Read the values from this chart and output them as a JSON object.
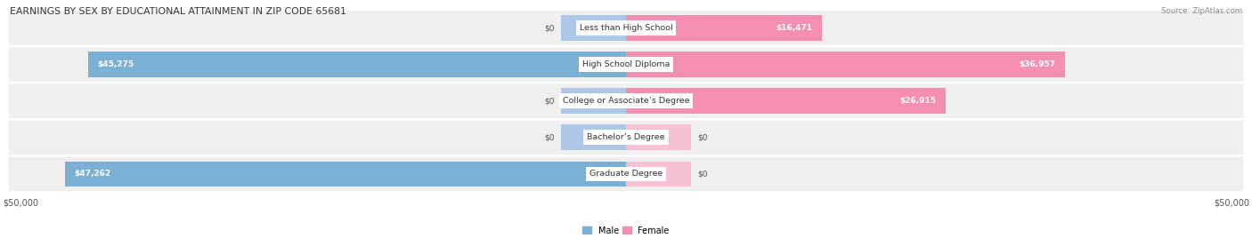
{
  "title": "EARNINGS BY SEX BY EDUCATIONAL ATTAINMENT IN ZIP CODE 65681",
  "source": "Source: ZipAtlas.com",
  "categories": [
    "Less than High School",
    "High School Diploma",
    "College or Associate’s Degree",
    "Bachelor’s Degree",
    "Graduate Degree"
  ],
  "male_values": [
    0,
    45275,
    0,
    0,
    47262
  ],
  "female_values": [
    16471,
    36957,
    26915,
    0,
    0
  ],
  "male_color": "#7bafd4",
  "female_color": "#f48fb1",
  "male_color_light": "#aec6e8",
  "female_color_light": "#f8c0d4",
  "max_value": 50000,
  "stub_value": 5500,
  "xlabel_left": "$50,000",
  "xlabel_right": "$50,000",
  "background_color": "#ffffff",
  "row_bg_color": "#efefef"
}
